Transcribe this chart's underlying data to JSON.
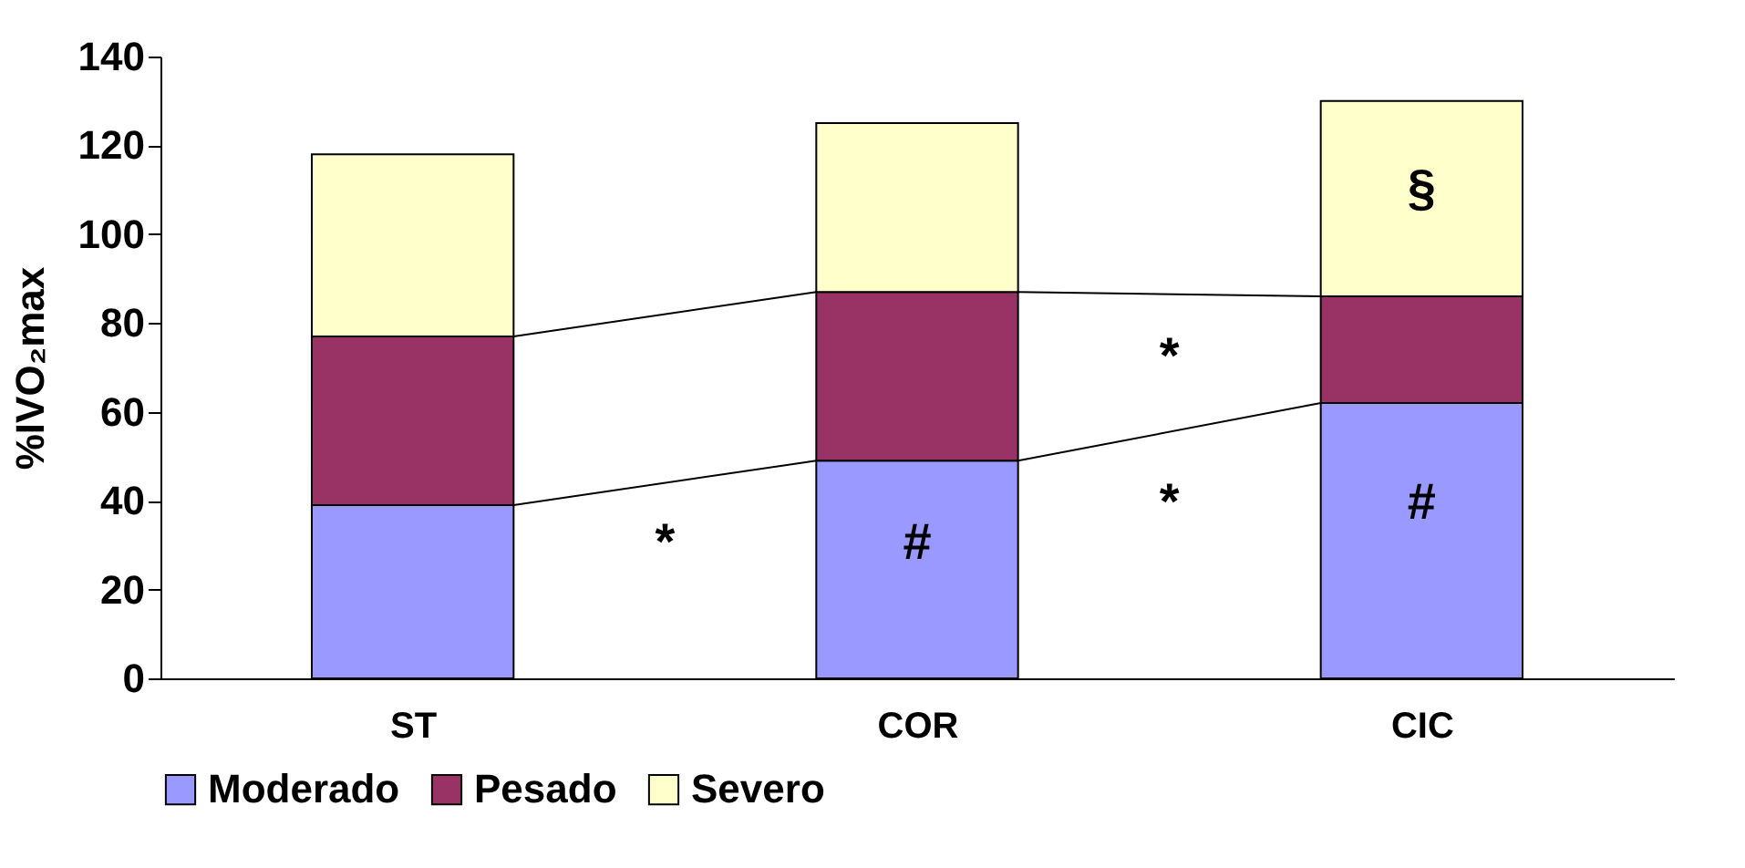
{
  "chart_data": {
    "type": "bar",
    "stacked": true,
    "ylabel": "%IVO₂max",
    "categories": [
      "ST",
      "COR",
      "CIC"
    ],
    "series": [
      {
        "name": "Moderado",
        "color": "#9999ff",
        "values": [
          39,
          49,
          62
        ]
      },
      {
        "name": "Pesado",
        "color": "#993366",
        "values": [
          38,
          38,
          24
        ]
      },
      {
        "name": "Severo",
        "color": "#ffffcc",
        "values": [
          41,
          38,
          44
        ]
      }
    ],
    "ylim": [
      0,
      140
    ],
    "yticks": [
      0,
      20,
      40,
      60,
      80,
      100,
      120,
      140
    ],
    "grid": false,
    "legend": "bottom",
    "annotations": [
      "*",
      "#",
      "*",
      "*",
      "#",
      "§"
    ]
  }
}
